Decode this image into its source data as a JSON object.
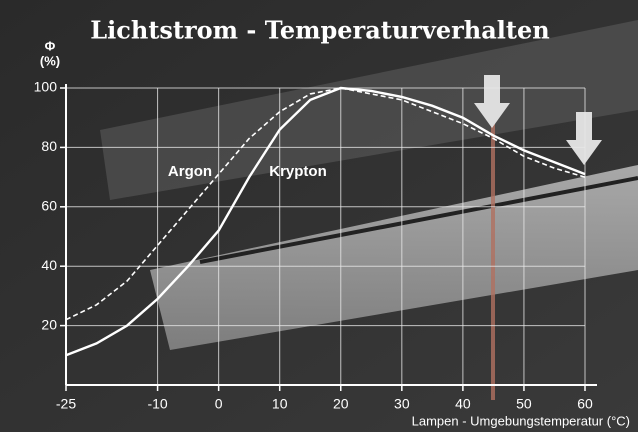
{
  "chart_data": {
    "type": "line",
    "title": "Lichtstrom - Temperaturverhalten",
    "y_label": [
      "Φ",
      "(%)"
    ],
    "x_label": "Lampen - Umgebungstemperatur (°C)",
    "x": [
      -25,
      -20,
      -15,
      -10,
      -5,
      0,
      5,
      10,
      15,
      20,
      25,
      30,
      35,
      40,
      45,
      50,
      55,
      60
    ],
    "series": [
      {
        "name": "Argon",
        "color": "#ffffff",
        "dashed": true,
        "values": [
          22,
          27,
          35,
          47,
          59,
          71,
          83,
          92,
          98,
          100,
          98,
          96,
          92,
          88,
          83,
          77,
          73,
          70
        ]
      },
      {
        "name": "Krypton",
        "color": "#ffffff",
        "dashed": false,
        "values": [
          10,
          14,
          20,
          29,
          40,
          52,
          70,
          86,
          96,
          100,
          99,
          97,
          94,
          90,
          84,
          79,
          75,
          71
        ]
      }
    ],
    "xlim": [
      -25,
      60
    ],
    "ylim": [
      0,
      100
    ],
    "xticks": [
      -25,
      -10,
      0,
      10,
      20,
      30,
      40,
      50,
      60
    ],
    "yticks": [
      20,
      40,
      60,
      80,
      100
    ],
    "grid": true
  }
}
